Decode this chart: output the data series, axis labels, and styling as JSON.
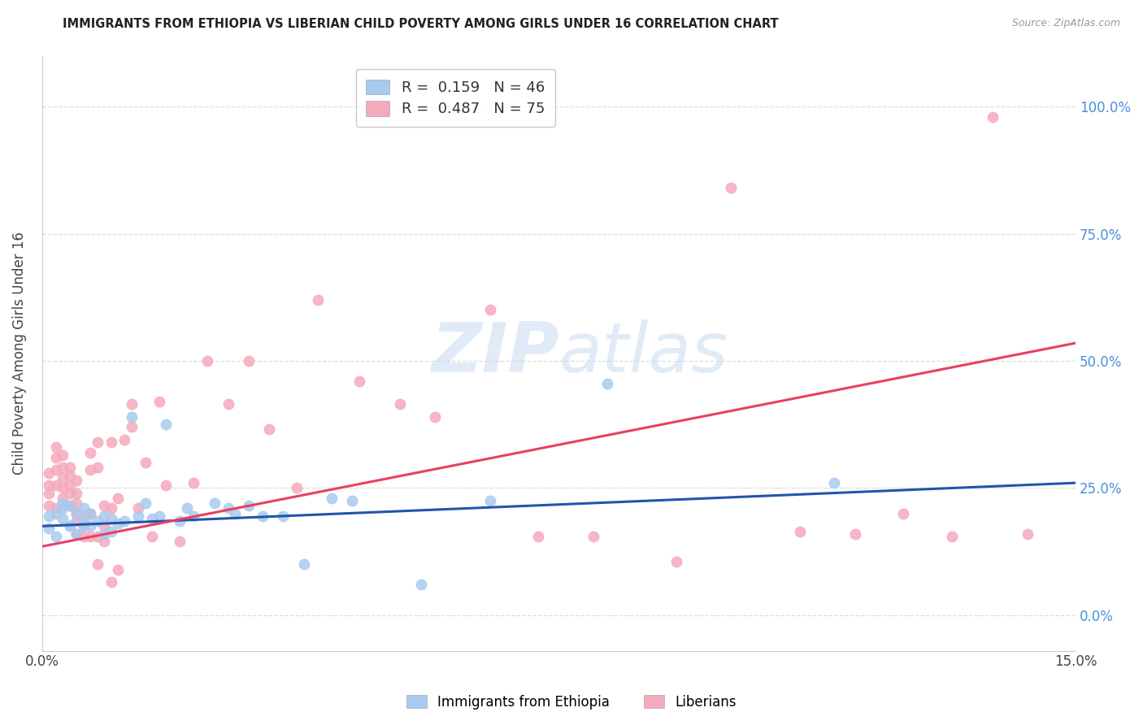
{
  "title": "IMMIGRANTS FROM ETHIOPIA VS LIBERIAN CHILD POVERTY AMONG GIRLS UNDER 16 CORRELATION CHART",
  "source": "Source: ZipAtlas.com",
  "ylabel": "Child Poverty Among Girls Under 16",
  "xlim": [
    0.0,
    0.15
  ],
  "ylim": [
    -0.07,
    1.1
  ],
  "yticks": [
    0.0,
    0.25,
    0.5,
    0.75,
    1.0
  ],
  "ytick_labels_right": [
    "0.0%",
    "25.0%",
    "50.0%",
    "75.0%",
    "100.0%"
  ],
  "xticks": [
    0.0,
    0.03,
    0.06,
    0.09,
    0.12,
    0.15
  ],
  "xtick_labels": [
    "0.0%",
    "",
    "",
    "",
    "",
    "15.0%"
  ],
  "watermark_zip": "ZIP",
  "watermark_atlas": "atlas",
  "blue_color": "#A8CAEE",
  "pink_color": "#F5AABB",
  "blue_line_color": "#2255AA",
  "pink_line_color": "#E84060",
  "legend_blue_label": "R =  0.159   N = 46",
  "legend_pink_label": "R =  0.487   N = 75",
  "legend_label_blue": "Immigrants from Ethiopia",
  "legend_label_pink": "Liberians",
  "blue_line_x0": 0.0,
  "blue_line_y0": 0.175,
  "blue_line_x1": 0.15,
  "blue_line_y1": 0.26,
  "pink_line_x0": 0.0,
  "pink_line_y0": 0.135,
  "pink_line_x1": 0.15,
  "pink_line_y1": 0.535,
  "blue_x": [
    0.001,
    0.001,
    0.002,
    0.002,
    0.003,
    0.003,
    0.003,
    0.004,
    0.004,
    0.004,
    0.005,
    0.005,
    0.006,
    0.006,
    0.006,
    0.007,
    0.007,
    0.008,
    0.009,
    0.009,
    0.01,
    0.01,
    0.011,
    0.012,
    0.013,
    0.014,
    0.015,
    0.016,
    0.017,
    0.018,
    0.02,
    0.021,
    0.022,
    0.025,
    0.027,
    0.028,
    0.03,
    0.032,
    0.035,
    0.038,
    0.042,
    0.045,
    0.055,
    0.065,
    0.082,
    0.115
  ],
  "blue_y": [
    0.195,
    0.17,
    0.155,
    0.2,
    0.22,
    0.19,
    0.21,
    0.175,
    0.215,
    0.175,
    0.2,
    0.16,
    0.21,
    0.175,
    0.185,
    0.175,
    0.2,
    0.185,
    0.195,
    0.16,
    0.165,
    0.19,
    0.18,
    0.185,
    0.39,
    0.195,
    0.22,
    0.19,
    0.195,
    0.375,
    0.185,
    0.21,
    0.195,
    0.22,
    0.21,
    0.2,
    0.215,
    0.195,
    0.195,
    0.1,
    0.23,
    0.225,
    0.06,
    0.225,
    0.455,
    0.26
  ],
  "pink_x": [
    0.001,
    0.001,
    0.001,
    0.001,
    0.002,
    0.002,
    0.002,
    0.002,
    0.002,
    0.003,
    0.003,
    0.003,
    0.003,
    0.003,
    0.003,
    0.004,
    0.004,
    0.004,
    0.004,
    0.004,
    0.005,
    0.005,
    0.005,
    0.005,
    0.005,
    0.005,
    0.006,
    0.006,
    0.006,
    0.007,
    0.007,
    0.007,
    0.007,
    0.008,
    0.008,
    0.008,
    0.008,
    0.009,
    0.009,
    0.009,
    0.01,
    0.01,
    0.01,
    0.011,
    0.011,
    0.012,
    0.013,
    0.013,
    0.014,
    0.015,
    0.016,
    0.017,
    0.018,
    0.02,
    0.022,
    0.024,
    0.027,
    0.03,
    0.033,
    0.037,
    0.04,
    0.046,
    0.052,
    0.057,
    0.065,
    0.072,
    0.08,
    0.092,
    0.1,
    0.11,
    0.118,
    0.125,
    0.132,
    0.138,
    0.143
  ],
  "pink_y": [
    0.215,
    0.24,
    0.255,
    0.28,
    0.21,
    0.255,
    0.285,
    0.31,
    0.33,
    0.215,
    0.23,
    0.25,
    0.27,
    0.29,
    0.315,
    0.215,
    0.24,
    0.255,
    0.275,
    0.29,
    0.16,
    0.185,
    0.2,
    0.22,
    0.24,
    0.265,
    0.155,
    0.175,
    0.195,
    0.155,
    0.2,
    0.285,
    0.32,
    0.1,
    0.155,
    0.29,
    0.34,
    0.145,
    0.175,
    0.215,
    0.065,
    0.21,
    0.34,
    0.09,
    0.23,
    0.345,
    0.37,
    0.415,
    0.21,
    0.3,
    0.155,
    0.42,
    0.255,
    0.145,
    0.26,
    0.5,
    0.415,
    0.5,
    0.365,
    0.25,
    0.62,
    0.46,
    0.415,
    0.39,
    0.6,
    0.155,
    0.155,
    0.105,
    0.84,
    0.165,
    0.16,
    0.2,
    0.155,
    0.98,
    0.16
  ]
}
